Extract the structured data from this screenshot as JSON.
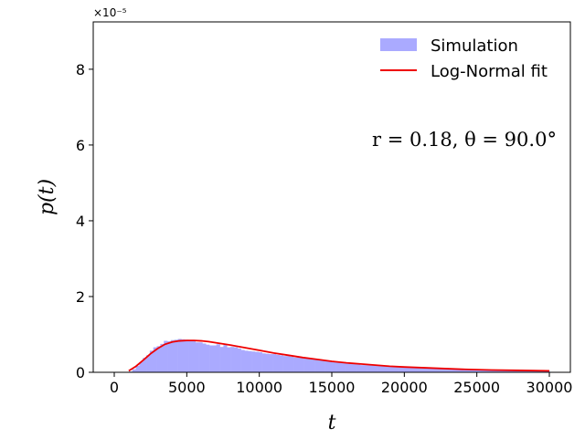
{
  "chart_data": {
    "type": "bar",
    "xlabel": "t",
    "ylabel": "p(t)",
    "xlim": [
      -1450,
      31450
    ],
    "ylim": [
      0,
      9.25e-05
    ],
    "x_ticks": [
      0,
      5000,
      10000,
      15000,
      20000,
      25000,
      30000
    ],
    "x_tick_labels": [
      "0",
      "5000",
      "10000",
      "15000",
      "20000",
      "25000",
      "30000"
    ],
    "y_ticks": [
      0,
      2e-05,
      4e-05,
      6e-05,
      8e-05
    ],
    "y_tick_labels": [
      "0",
      "2",
      "4",
      "6",
      "8"
    ],
    "y_offset_label": "×10⁻⁵",
    "annotation": "r = 0.18, θ = 90.0°",
    "legend": {
      "position": "top-right",
      "entries": [
        {
          "label": "Simulation",
          "color": "#aaaaff",
          "kind": "patch"
        },
        {
          "label": "Log-Normal fit",
          "color": "#ee0000",
          "kind": "line"
        }
      ]
    },
    "histogram": {
      "name": "Simulation",
      "color": "#aaaaff",
      "bin_start": 1000,
      "bin_width": 241.7,
      "values": [
        2e-07,
        8e-07,
        1.7e-06,
        2.7e-06,
        3.8e-06,
        4.5e-06,
        5.7e-06,
        6.6e-06,
        6.9e-06,
        7.5e-06,
        8.3e-06,
        8.2e-06,
        8.5e-06,
        8.6e-06,
        8.8e-06,
        8.7e-06,
        8.6e-06,
        8.4e-06,
        8.3e-06,
        7.9e-06,
        7.9e-06,
        7.6e-06,
        7.3e-06,
        7.1e-06,
        7.1e-06,
        7.4e-06,
        6.7e-06,
        7.2e-06,
        6.6e-06,
        6.7e-06,
        6.6e-06,
        6.3e-06,
        5.9e-06,
        5.7e-06,
        5.6e-06,
        5.5e-06,
        5.4e-06,
        5.3e-06,
        5e-06,
        4.9e-06,
        4.8e-06,
        4.8e-06,
        4.6e-06,
        4.5e-06,
        4.3e-06,
        4.3e-06,
        4.1e-06,
        3.9e-06,
        4e-06,
        3.8e-06,
        3.7e-06,
        3.5e-06,
        3.5e-06,
        3.4e-06,
        3.2e-06,
        3.1e-06,
        2.9e-06,
        2.8e-06,
        2.7e-06,
        2.6e-06,
        2.5e-06,
        2.4e-06,
        2.5e-06,
        2.2e-06,
        2.2e-06,
        2.1e-06,
        1.9e-06,
        1.9e-06,
        1.9e-06,
        1.8e-06,
        1.9e-06,
        1.7e-06,
        1.6e-06,
        1.6e-06,
        1.5e-06,
        1.5e-06,
        1.4e-06,
        1.5e-06,
        1.4e-06,
        1.3e-06,
        1.3e-06,
        1.2e-06,
        1.2e-06,
        1.2e-06,
        1.1e-06,
        1.1e-06,
        1e-06,
        1e-06,
        1e-06,
        9e-07,
        9e-07,
        9e-07,
        8e-07,
        8e-07,
        8e-07,
        8e-07,
        8e-07,
        7e-07,
        7e-07,
        7e-07,
        8e-07,
        7e-07,
        6e-07,
        7e-07,
        6e-07,
        6e-07,
        7e-07,
        6e-07,
        6e-07,
        5e-07,
        6e-07,
        5e-07,
        5e-07,
        5e-07,
        5e-07,
        5e-07,
        5e-07,
        5e-07,
        4e-07,
        5e-07
      ]
    },
    "fit_curve": {
      "name": "Log-Normal fit",
      "color": "#ee0000",
      "x": [
        1000,
        1500,
        2000,
        2500,
        3000,
        3500,
        4000,
        4500,
        5000,
        5500,
        6000,
        6500,
        7000,
        7500,
        8000,
        9000,
        10000,
        11000,
        12000,
        13000,
        14000,
        15000,
        16000,
        17000,
        18000,
        19000,
        20000,
        22000,
        24000,
        26000,
        28000,
        30000
      ],
      "y": [
        4e-07,
        1.6e-06,
        3.2e-06,
        4.9e-06,
        6.3e-06,
        7.4e-06,
        8e-06,
        8.3e-06,
        8.4e-06,
        8.4e-06,
        8.3e-06,
        8.1e-06,
        7.8e-06,
        7.5e-06,
        7.2e-06,
        6.5e-06,
        5.8e-06,
        5.1e-06,
        4.5e-06,
        3.9e-06,
        3.4e-06,
        2.9e-06,
        2.5e-06,
        2.2e-06,
        1.9e-06,
        1.6e-06,
        1.4e-06,
        1.1e-06,
        8e-07,
        6e-07,
        5e-07,
        4e-07
      ]
    }
  }
}
